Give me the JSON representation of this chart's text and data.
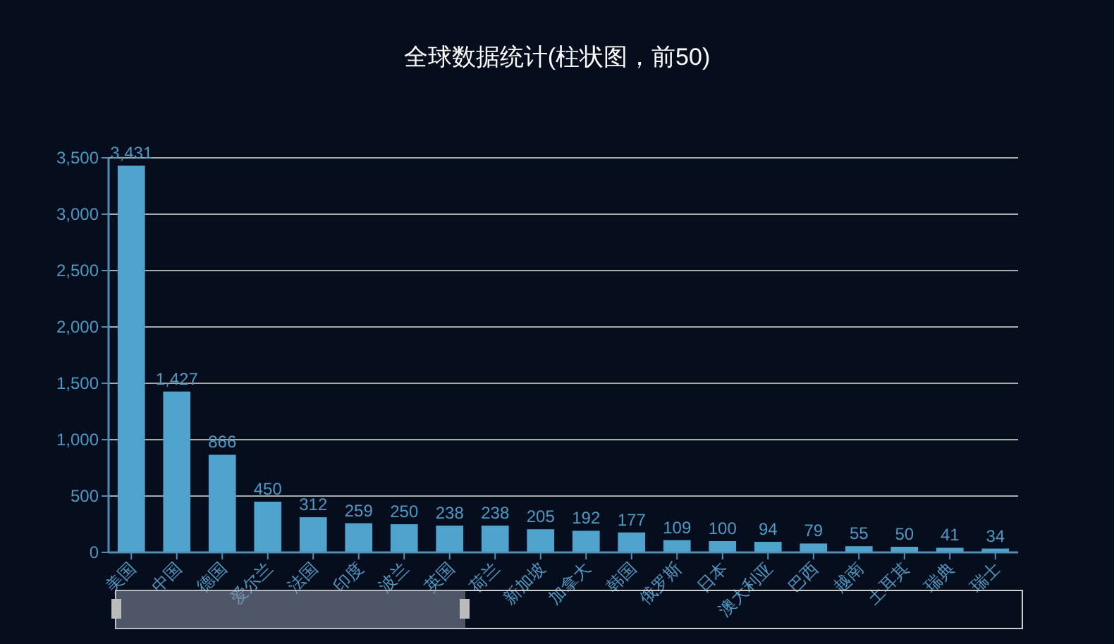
{
  "chart_data": {
    "type": "bar",
    "title": "全球数据统计(柱状图，前50)",
    "categories": [
      "美国",
      "中国",
      "德国",
      "爱尔兰",
      "法国",
      "印度",
      "波兰",
      "英国",
      "荷兰",
      "新加坡",
      "加拿大",
      "韩国",
      "俄罗斯",
      "日本",
      "澳大利亚",
      "巴西",
      "越南",
      "土耳其",
      "瑞典",
      "瑞士"
    ],
    "values": [
      3431,
      1427,
      866,
      450,
      312,
      259,
      250,
      238,
      238,
      205,
      192,
      177,
      109,
      100,
      94,
      79,
      55,
      50,
      41,
      34
    ],
    "color": "#4fa3cc",
    "ylim": [
      0,
      3500
    ],
    "yticks": [
      {
        "value": 0,
        "label": "0"
      },
      {
        "value": 500,
        "label": "500"
      },
      {
        "value": 1000,
        "label": "1,000"
      },
      {
        "value": 1500,
        "label": "1,500"
      },
      {
        "value": 2000,
        "label": "2,000"
      },
      {
        "value": 2500,
        "label": "2,500"
      },
      {
        "value": 3000,
        "label": "3,000"
      },
      {
        "value": 3500,
        "label": "3,500"
      }
    ],
    "grid": "y",
    "value_labels": [
      "3,431",
      "1,427",
      "866",
      "450",
      "312",
      "259",
      "250",
      "238",
      "238",
      "205",
      "192",
      "177",
      "109",
      "100",
      "94",
      "79",
      "55",
      "50",
      "41",
      "34"
    ]
  }
}
